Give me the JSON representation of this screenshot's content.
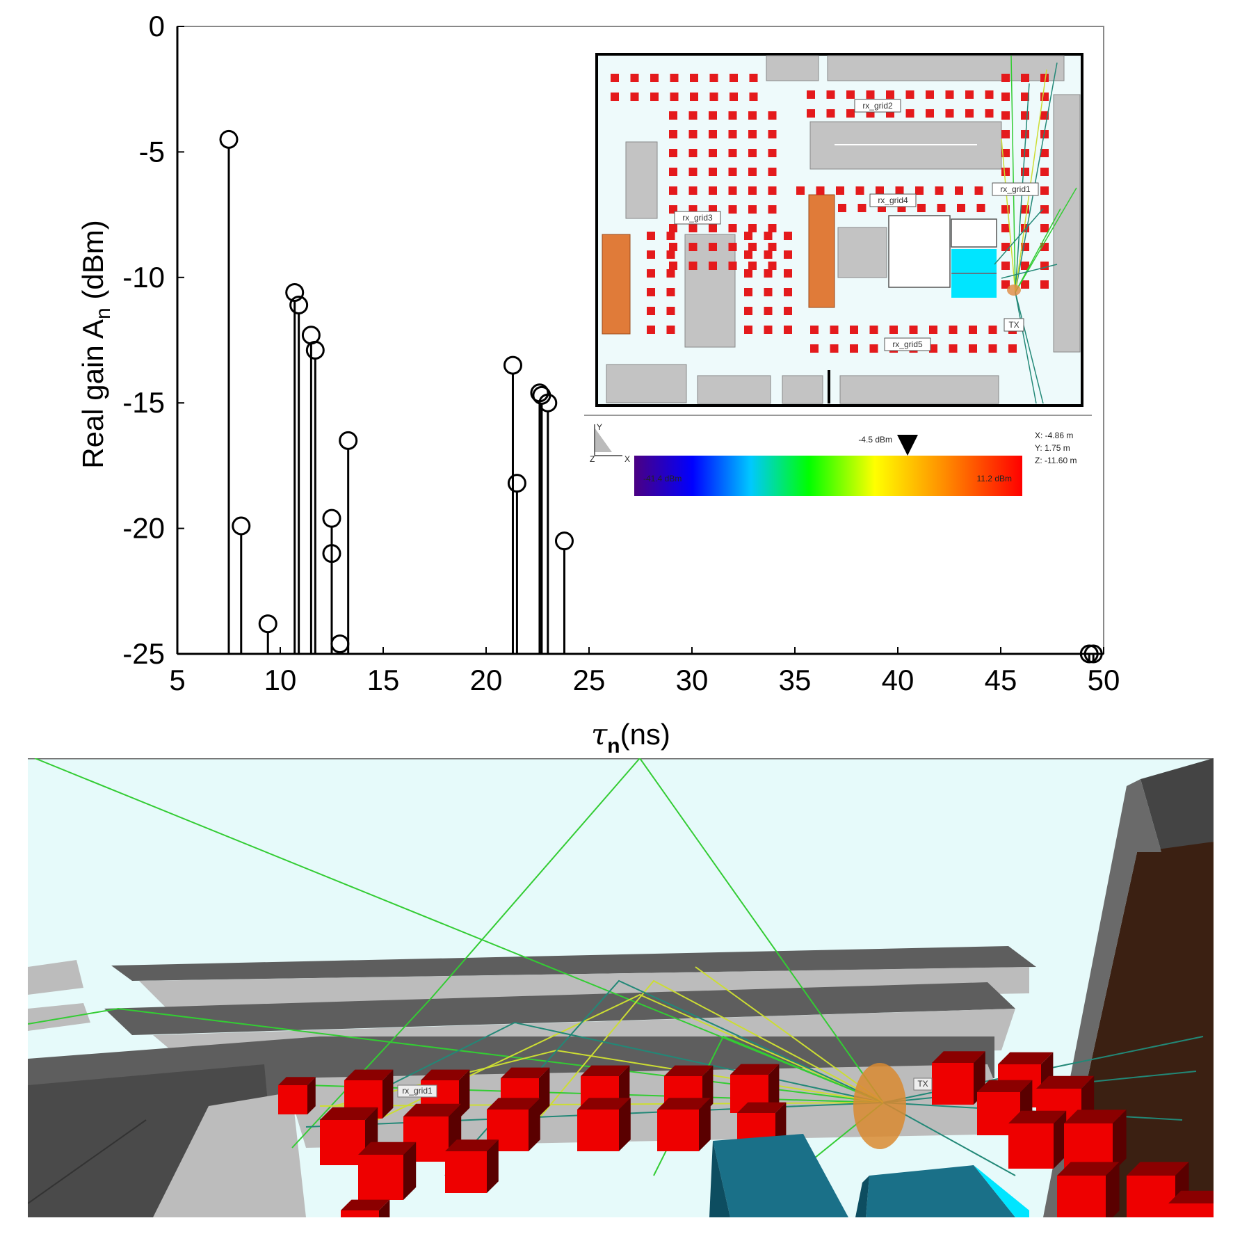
{
  "chart_data": {
    "type": "stem",
    "xlabel_symbol": "τ",
    "xlabel_sub": "n",
    "xlabel_unit": "(ns)",
    "ylabel_main": "Real gain A",
    "ylabel_sub": "n",
    "ylabel_unit": " (dBm)",
    "xlim": [
      5,
      50
    ],
    "ylim": [
      -25,
      0
    ],
    "xticks": [
      5,
      10,
      15,
      20,
      25,
      30,
      35,
      40,
      45,
      50
    ],
    "yticks": [
      0,
      -5,
      -10,
      -15,
      -20,
      -25
    ],
    "points": [
      {
        "x": 7.5,
        "y": -4.5
      },
      {
        "x": 8.1,
        "y": -19.9
      },
      {
        "x": 9.4,
        "y": -23.8
      },
      {
        "x": 10.7,
        "y": -10.6
      },
      {
        "x": 10.9,
        "y": -11.1
      },
      {
        "x": 11.5,
        "y": -12.3
      },
      {
        "x": 11.7,
        "y": -12.9
      },
      {
        "x": 12.5,
        "y": -19.6
      },
      {
        "x": 12.5,
        "y": -21.0
      },
      {
        "x": 12.9,
        "y": -24.6
      },
      {
        "x": 13.3,
        "y": -16.5
      },
      {
        "x": 21.3,
        "y": -13.5
      },
      {
        "x": 21.5,
        "y": -18.2
      },
      {
        "x": 22.6,
        "y": -14.6
      },
      {
        "x": 22.7,
        "y": -14.7
      },
      {
        "x": 23.0,
        "y": -15.0
      },
      {
        "x": 23.8,
        "y": -20.5
      },
      {
        "x": 49.3,
        "y": -25.0
      },
      {
        "x": 49.5,
        "y": -25.0
      }
    ]
  },
  "inset_map": {
    "labels": [
      "rx_grid2",
      "rx_grid1",
      "rx_grid4",
      "rx_grid3",
      "TX",
      "rx_grid5"
    ],
    "marker_value": "-4.5 dBm",
    "colorbar_min": "-41.4 dBm",
    "colorbar_max": "11.2 dBm",
    "coords": [
      "X: -4.86 m",
      "Y: 1.75 m",
      "Z: -11.60 m"
    ],
    "axis_x": "X",
    "axis_y": "Y",
    "axis_z": "Z"
  },
  "scene_3d": {
    "labels": [
      "rx_grid1",
      "TX"
    ]
  },
  "colors": {
    "rx_block": "#e41a1c",
    "building": "#c0c0c0",
    "orange_block": "#e07b39",
    "cyan_block": "#00e5ff",
    "sky": "#e6fafa",
    "ray_green": "#33cc33",
    "ray_yellow": "#ccdd33",
    "ray_teal": "#228877"
  }
}
